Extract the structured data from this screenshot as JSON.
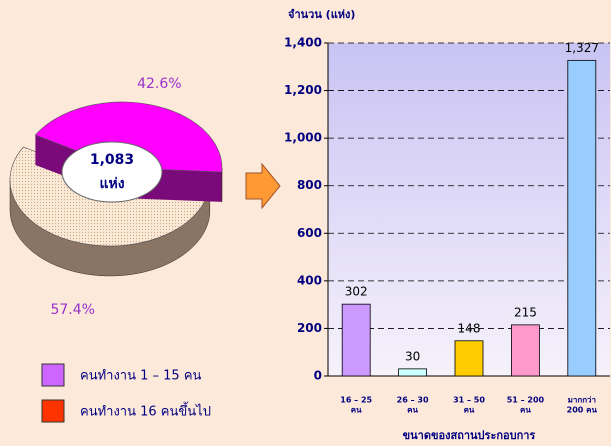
{
  "chart_data": [
    {
      "type": "pie",
      "categories": [
        "คนทำงาน 1 – 15 คน",
        "คนทำงาน 16 คนขึ้นไป"
      ],
      "values": [
        42.6,
        57.4
      ],
      "value_labels": [
        "42.6%",
        "57.4%"
      ],
      "colors": [
        "#ff00ff",
        "#fbe9d6"
      ],
      "side_colors": [
        "#7a0a7a",
        "#8a7464"
      ],
      "legend_colors": [
        "#cc66ff",
        "#ff3300"
      ],
      "center_label": [
        "1,083",
        "แห่ง"
      ]
    },
    {
      "type": "bar",
      "y_label": "จำนวน (แห่ง)",
      "x_label": "ขนาดของสถานประกอบการ",
      "categories": [
        [
          "16 – 25",
          "คน"
        ],
        [
          "26 – 30",
          "คน"
        ],
        [
          "31 – 50",
          "คน"
        ],
        [
          "51 – 200",
          "คน"
        ],
        [
          "มากกว่า",
          "200 คน"
        ]
      ],
      "values": [
        302,
        30,
        148,
        215,
        1327
      ],
      "value_labels": [
        "302",
        "30",
        "148",
        "215",
        "1,327"
      ],
      "colors": [
        "#cc99ff",
        "#ccffff",
        "#ffcc00",
        "#ff99cc",
        "#99ccff"
      ],
      "ylim": [
        0,
        1400
      ],
      "yticks": [
        0,
        200,
        400,
        600,
        800,
        {
          "value": 1000,
          "label": "1,000"
        },
        {
          "value": 1200,
          "label": "1,200"
        },
        {
          "value": 1400,
          "label": "1,400"
        }
      ],
      "grid": true
    }
  ]
}
